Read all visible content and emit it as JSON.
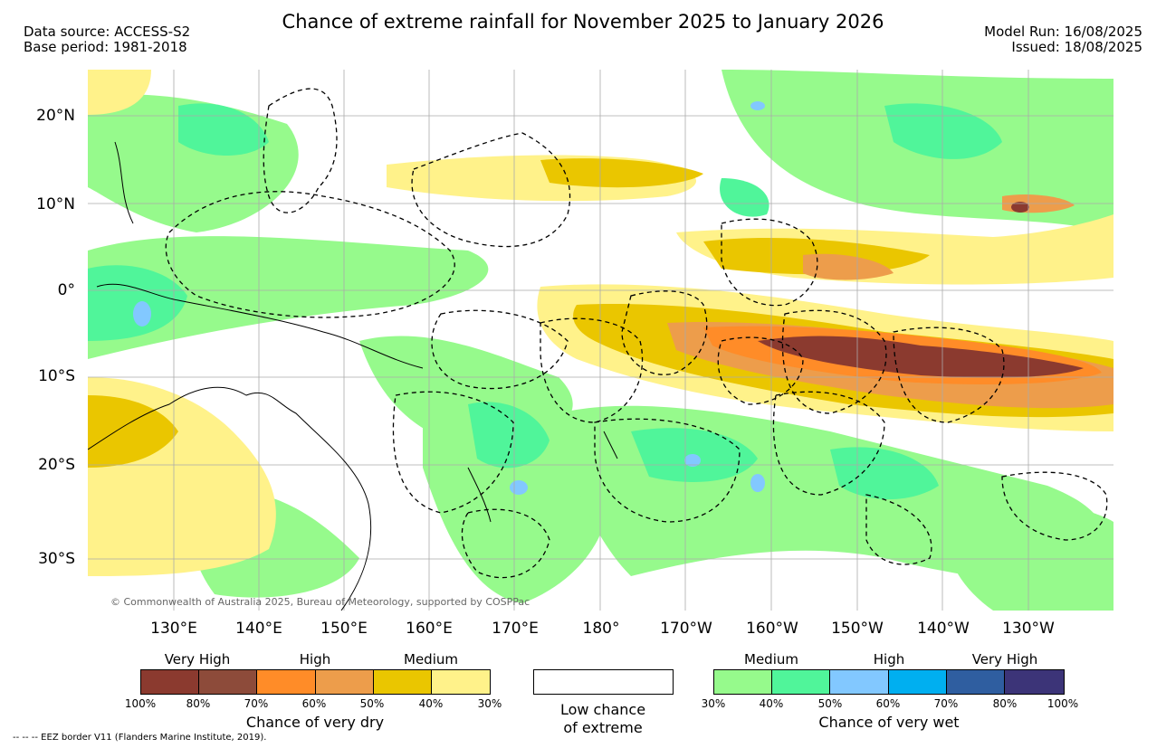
{
  "title": "Chance of extreme rainfall for November 2025 to January 2026",
  "meta_left": {
    "data_source": "Data source: ACCESS-S2",
    "base_period": "Base period: 1981-2018"
  },
  "meta_right": {
    "model_run": "Model Run: 16/08/2025",
    "issued": "Issued: 18/08/2025"
  },
  "map": {
    "latitude_labels": [
      "20°N",
      "10°N",
      "0°",
      "10°S",
      "20°S",
      "30°S"
    ],
    "longitude_labels": [
      "130°E",
      "140°E",
      "150°E",
      "160°E",
      "170°E",
      "180°",
      "170°W",
      "160°W",
      "150°W",
      "140°W",
      "130°W"
    ],
    "copyright": "© Commonwealth of Australia 2025, Bureau of Meteorology, supported by COSPPac"
  },
  "dry_legend": {
    "categories": [
      "Very High",
      "High",
      "Medium"
    ],
    "ticks": [
      "100%",
      "80%",
      "70%",
      "60%",
      "50%",
      "40%",
      "30%"
    ],
    "colors": [
      "#8b3a2f",
      "#8d4b3a",
      "#ff8c28",
      "#ed9d4b",
      "#eac600",
      "#fff28a"
    ],
    "label": "Chance of very dry"
  },
  "low_legend": {
    "line1": "Low chance",
    "line2": "of extreme"
  },
  "wet_legend": {
    "categories": [
      "Medium",
      "High",
      "Very High"
    ],
    "ticks": [
      "30%",
      "40%",
      "50%",
      "60%",
      "70%",
      "80%",
      "100%"
    ],
    "colors": [
      "#96fa8c",
      "#50f59a",
      "#82c8ff",
      "#00aff0",
      "#2f5ea0",
      "#3c3478"
    ],
    "label": "Chance of very wet"
  },
  "eez_note": "-- -- -- EEZ border V11 (Flanders Marine Institute, 2019)."
}
